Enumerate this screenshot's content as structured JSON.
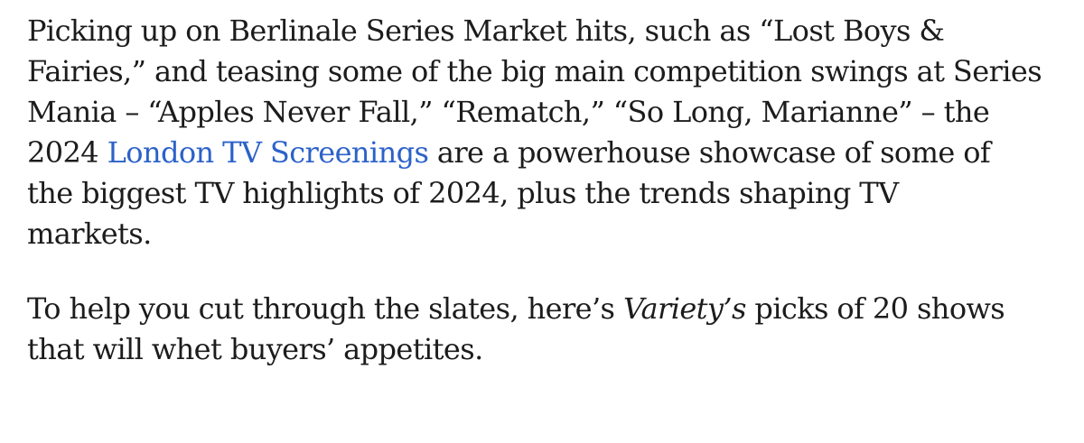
{
  "article": {
    "paragraph1": {
      "line1": "Picking up on Berlinale Series Market hits, such as “Lost Boys &",
      "line2": "Fairies,” and teasing some of the big main competition swings at Series",
      "line3": "Mania – “Apples Never Fall,” “Rematch,” “So Long, Marianne” – the",
      "line4_before": "2024 ",
      "link_text": "London TV Screenings",
      "line4_after": " are a powerhouse showcase of some of",
      "line5": "the biggest TV highlights of 2024, plus the trends shaping TV",
      "line6": "markets."
    },
    "paragraph2": {
      "line1_before": "To help you cut through the slates, here’s ",
      "line1_em": "Variety’s",
      "line1_after": " picks of 20 shows",
      "line2": "that will whet buyers’ appetites."
    }
  },
  "colors": {
    "text": "#1c1c1c",
    "link": "#2c62c9",
    "background": "#ffffff"
  }
}
